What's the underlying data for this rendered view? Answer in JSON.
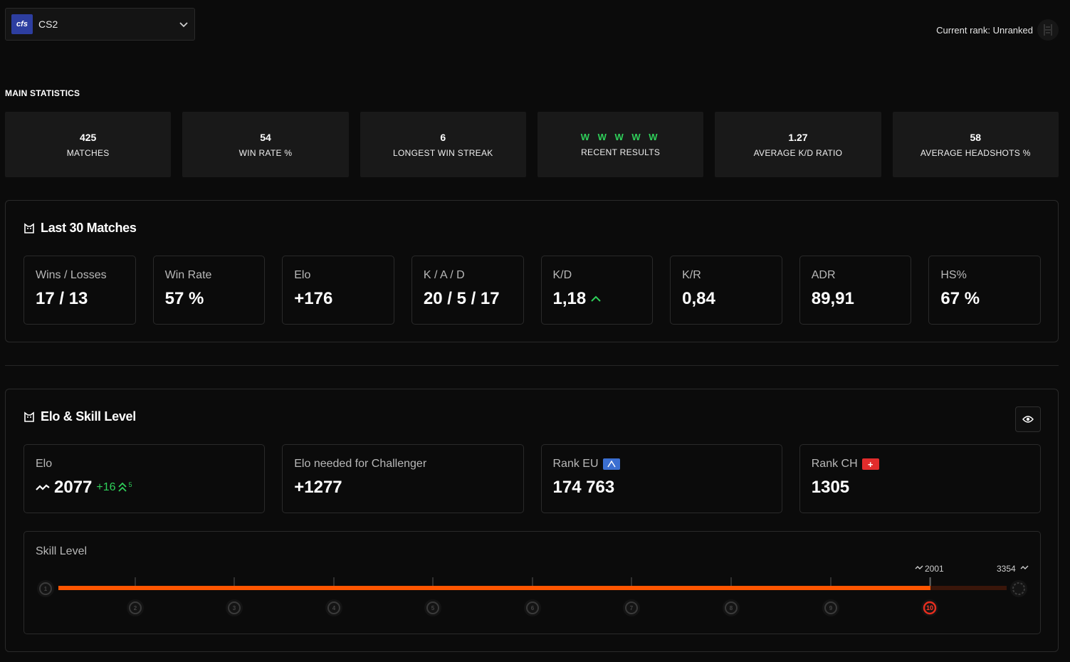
{
  "header": {
    "game": {
      "logo_text": "cfs",
      "name": "CS2"
    },
    "current_rank": "Current rank: Unranked"
  },
  "main_statistics": {
    "title": "MAIN STATISTICS",
    "cards": [
      {
        "value": "425",
        "label": "MATCHES"
      },
      {
        "value": "54",
        "label": "WIN RATE %"
      },
      {
        "value": "6",
        "label": "LONGEST WIN STREAK"
      },
      {
        "value": "W W W W W",
        "label": "RECENT RESULTS"
      },
      {
        "value": "1.27",
        "label": "AVERAGE K/D RATIO"
      },
      {
        "value": "58",
        "label": "AVERAGE HEADSHOTS %"
      }
    ]
  },
  "last30": {
    "title": "Last 30 Matches",
    "cards": [
      {
        "label": "Wins / Losses",
        "value": "17 / 13"
      },
      {
        "label": "Win Rate",
        "value": "57 %"
      },
      {
        "label": "Elo",
        "value": "+176"
      },
      {
        "label": "K / A / D",
        "value": "20 / 5 / 17"
      },
      {
        "label": "K/D",
        "value": "1,18"
      },
      {
        "label": "K/R",
        "value": "0,84"
      },
      {
        "label": "ADR",
        "value": "89,91"
      },
      {
        "label": "HS%",
        "value": "67 %"
      }
    ]
  },
  "elo_skill": {
    "title": "Elo & Skill Level",
    "elo": {
      "label": "Elo",
      "value": "2077",
      "diff": "+16",
      "diff_sup": "5"
    },
    "challenger": {
      "label": "Elo needed for Challenger",
      "value": "+1277"
    },
    "rank_eu": {
      "label": "Rank EU",
      "value": "174 763"
    },
    "rank_ch": {
      "label": "Rank CH",
      "value": "1305"
    },
    "skill": {
      "label": "Skill Level",
      "levels": [
        "1",
        "2",
        "3",
        "4",
        "5",
        "6",
        "7",
        "8",
        "9",
        "10"
      ],
      "current_level": 10,
      "level10_elo": "2001",
      "max_elo": "3354",
      "progress_color": "#ff5500",
      "current_level_color": "#e62d1e"
    }
  },
  "colors": {
    "accent_green": "#2fd05a",
    "orange": "#ff5500"
  }
}
